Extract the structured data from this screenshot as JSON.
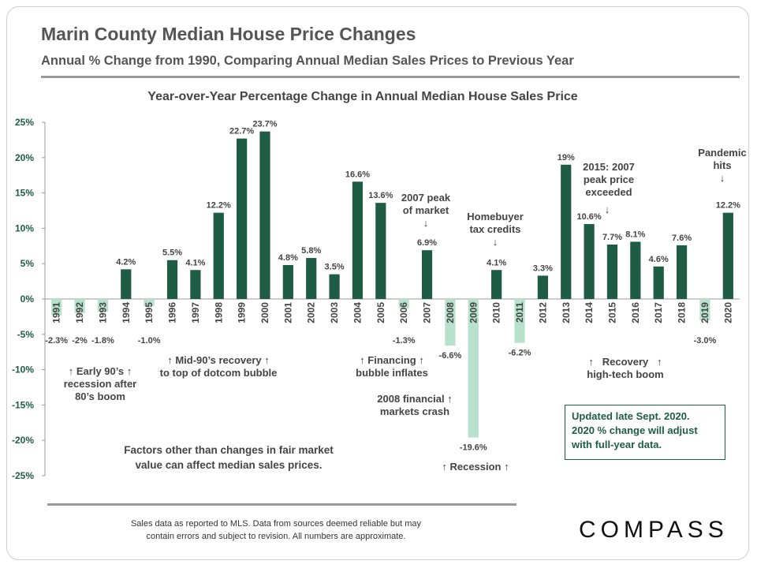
{
  "title": "Marin County Median House Price Changes",
  "subtitle": "Annual % Change from 1990, Comparing Annual Median Sales Prices to Previous Year",
  "chart_title": "Year-over-Year Percentage Change in Annual Median House Sales Price",
  "colors": {
    "positive": "#1e5c46",
    "negative": "#b7e1cc",
    "text": "#444444"
  },
  "chart_data": {
    "type": "bar",
    "title": "Year-over-Year Percentage Change in Annual Median House Sales Price",
    "xlabel": "",
    "ylabel": "",
    "ylim": [
      -25,
      25
    ],
    "yticks": [
      "25%",
      "20%",
      "15%",
      "10%",
      "5%",
      "0%",
      "-5%",
      "-10%",
      "-15%",
      "-20%",
      "-25%"
    ],
    "categories": [
      "1991",
      "1992",
      "1993",
      "1994",
      "1995",
      "1996",
      "1997",
      "1998",
      "1999",
      "2000",
      "2001",
      "2002",
      "2003",
      "2004",
      "2005",
      "2006",
      "2007",
      "2008",
      "2009",
      "2010",
      "2011",
      "2012",
      "2013",
      "2014",
      "2015",
      "2016",
      "2017",
      "2018",
      "2019",
      "2020"
    ],
    "values": [
      -2.3,
      -2,
      -1.8,
      4.2,
      -1.0,
      5.5,
      4.1,
      12.2,
      22.7,
      23.7,
      4.8,
      5.8,
      3.5,
      16.6,
      13.6,
      -1.3,
      6.9,
      -6.6,
      -19.6,
      4.1,
      -6.2,
      3.3,
      19,
      10.6,
      7.7,
      8.1,
      4.6,
      7.6,
      -3.0,
      12.2
    ],
    "data_labels": [
      "-2.3%",
      "-2%",
      "-1.8%",
      "4.2%",
      "-1.0%",
      "5.5%",
      "4.1%",
      "12.2%",
      "22.7%",
      "23.7%",
      "4.8%",
      "5.8%",
      "3.5%",
      "16.6%",
      "13.6%",
      "-1.3%",
      "6.9%",
      "-6.6%",
      "-19.6%",
      "4.1%",
      "-6.2%",
      "3.3%",
      "19%",
      "10.6%",
      "7.7%",
      "8.1%",
      "4.6%",
      "7.6%",
      "-3.0%",
      "12.2%"
    ],
    "grid": false,
    "legend": "none"
  },
  "annotations": {
    "early90s": [
      "Early 90’s",
      "recession after",
      "80’s boom"
    ],
    "mid90s": [
      "Mid-90’s recovery",
      "to top of dotcom bubble"
    ],
    "financing": [
      "Financing",
      "bubble inflates"
    ],
    "crash2008": [
      "2008 financial",
      "markets crash"
    ],
    "recession": "Recession",
    "recovery": [
      "Recovery",
      "high-tech boom"
    ],
    "peak2007": [
      "2007 peak",
      "of market"
    ],
    "homebuyer": [
      "Homebuyer",
      "tax credits"
    ],
    "peak2015": [
      "2015: 2007",
      "peak price",
      "exceeded"
    ],
    "pandemic": [
      "Pandemic",
      "hits"
    ],
    "factors": [
      "Factors other than changes in fair market",
      "value can affect median sales prices."
    ]
  },
  "arrows": {
    "up": "↑",
    "down": "↓"
  },
  "note": [
    "Updated late Sept. 2020.",
    "2020 % change will adjust",
    "with full-year data."
  ],
  "footer": [
    "Sales data as reported to MLS. Data from sources deemed reliable but may",
    "contain errors and subject to revision. All numbers are approximate."
  ],
  "logo": "COMPASS"
}
